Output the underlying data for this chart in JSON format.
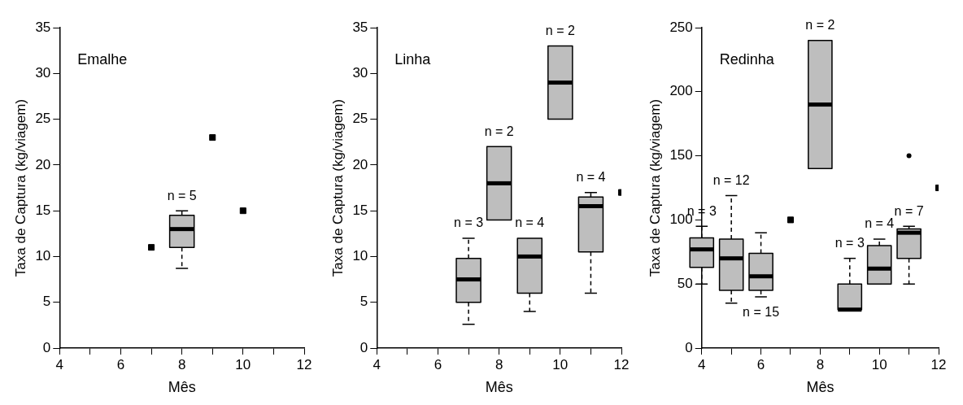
{
  "chart_data": [
    {
      "type": "box",
      "title": "Emalhe",
      "xlabel": "Mês",
      "ylabel": "Taxa de Captura (kg/viagem)",
      "series": [
        {
          "type": "box",
          "color": "#bebebe",
          "x": [
            8
          ],
          "boxes": [
            {
              "low": 8.7,
              "q1": 11,
              "median": 13,
              "q3": 14.5,
              "high": 15
            }
          ]
        },
        {
          "type": "scatter",
          "color": "#000000",
          "marker": "square",
          "x": [
            7,
            9,
            10
          ],
          "values": [
            11,
            23,
            15
          ]
        }
      ],
      "xlim": [
        4,
        12
      ],
      "xticks": [
        4,
        {
          "value": 5,
          "label": null
        },
        6,
        {
          "value": 7,
          "label": null
        },
        8,
        {
          "value": 9,
          "label": null
        },
        10,
        {
          "value": 11,
          "label": null
        },
        12
      ],
      "ylim": [
        0,
        35
      ],
      "yticks": [
        0,
        5,
        10,
        15,
        20,
        25,
        30,
        35
      ],
      "grid": false,
      "annotations": [
        {
          "text": "n = 5",
          "x": 8,
          "y": 15
        }
      ]
    },
    {
      "type": "box",
      "title": "Linha",
      "xlabel": "Mês",
      "ylabel": "Taxa de Captura (kg/viagem)",
      "series": [
        {
          "type": "box",
          "color": "#bebebe",
          "x": [
            7,
            8,
            9,
            10,
            11
          ],
          "boxes": [
            {
              "low": 2.6,
              "q1": 5,
              "median": 7.5,
              "q3": 9.8,
              "high": 12
            },
            {
              "low": 14,
              "q1": 14,
              "median": 18,
              "q3": 22,
              "high": 22
            },
            {
              "low": 4,
              "q1": 6,
              "median": 10,
              "q3": 12,
              "high": 12
            },
            {
              "low": 25,
              "q1": 25,
              "median": 29,
              "q3": 33,
              "high": 33
            },
            {
              "low": 6,
              "q1": 10.5,
              "median": 15.5,
              "q3": 16.5,
              "high": 17
            }
          ]
        },
        {
          "type": "scatter",
          "color": "#000000",
          "marker": "square",
          "x": [
            12
          ],
          "values": [
            17
          ]
        }
      ],
      "xlim": [
        4,
        12
      ],
      "xticks": [
        4,
        {
          "value": 5,
          "label": null
        },
        6,
        {
          "value": 7,
          "label": null
        },
        8,
        {
          "value": 9,
          "label": null
        },
        10,
        {
          "value": 11,
          "label": null
        },
        12
      ],
      "ylim": [
        0,
        35
      ],
      "yticks": [
        0,
        5,
        10,
        15,
        20,
        25,
        30,
        35
      ],
      "grid": false,
      "annotations": [
        {
          "text": "n = 3",
          "x": 7,
          "y": 12
        },
        {
          "text": "n = 2",
          "x": 8,
          "y": 22
        },
        {
          "text": "n = 4",
          "x": 9,
          "y": 12
        },
        {
          "text": "n = 2",
          "x": 10,
          "y": 33
        },
        {
          "text": "n = 4",
          "x": 11,
          "y": 17
        }
      ]
    },
    {
      "type": "box",
      "title": "Redinha",
      "xlabel": "Mês",
      "ylabel": "Taxa de Captura (kg/viagem)",
      "series": [
        {
          "type": "box",
          "color": "#bebebe",
          "x": [
            4,
            5,
            6,
            8,
            9,
            10,
            11
          ],
          "boxes": [
            {
              "low": 50,
              "q1": 63,
              "median": 77,
              "q3": 86,
              "high": 95
            },
            {
              "low": 35,
              "q1": 45,
              "median": 70,
              "q3": 85,
              "high": 119
            },
            {
              "low": 40,
              "q1": 45,
              "median": 56,
              "q3": 74,
              "high": 90
            },
            {
              "low": 140,
              "q1": 140,
              "median": 190,
              "q3": 240,
              "high": 240
            },
            {
              "low": 30,
              "q1": 30,
              "median": 30,
              "q3": 50,
              "high": 70
            },
            {
              "low": 50,
              "q1": 50,
              "median": 62,
              "q3": 80,
              "high": 85
            },
            {
              "low": 50,
              "q1": 70,
              "median": 90,
              "q3": 93,
              "high": 95,
              "outliers": [
                150
              ]
            }
          ]
        },
        {
          "type": "scatter",
          "color": "#000000",
          "marker": "square",
          "x": [
            7,
            12
          ],
          "values": [
            100,
            125
          ]
        }
      ],
      "xlim": [
        4,
        12
      ],
      "xticks": [
        4,
        {
          "value": 5,
          "label": null
        },
        6,
        {
          "value": 7,
          "label": null
        },
        8,
        {
          "value": 9,
          "label": null
        },
        10,
        {
          "value": 11,
          "label": null
        },
        12
      ],
      "ylim": [
        0,
        250
      ],
      "yticks": [
        0,
        50,
        100,
        150,
        200,
        250
      ],
      "grid": false,
      "annotations": [
        {
          "text": "n = 3",
          "x": 4,
          "y": 95
        },
        {
          "text": "n = 12",
          "x": 5,
          "y": 119
        },
        {
          "text": "n = 15",
          "x": 6,
          "y": 40
        },
        {
          "text": "n = 2",
          "x": 8,
          "y": 240
        },
        {
          "text": "n = 3",
          "x": 9,
          "y": 70
        },
        {
          "text": "n = 4",
          "x": 10,
          "y": 85
        },
        {
          "text": "n = 7",
          "x": 11,
          "y": 95
        }
      ]
    }
  ]
}
